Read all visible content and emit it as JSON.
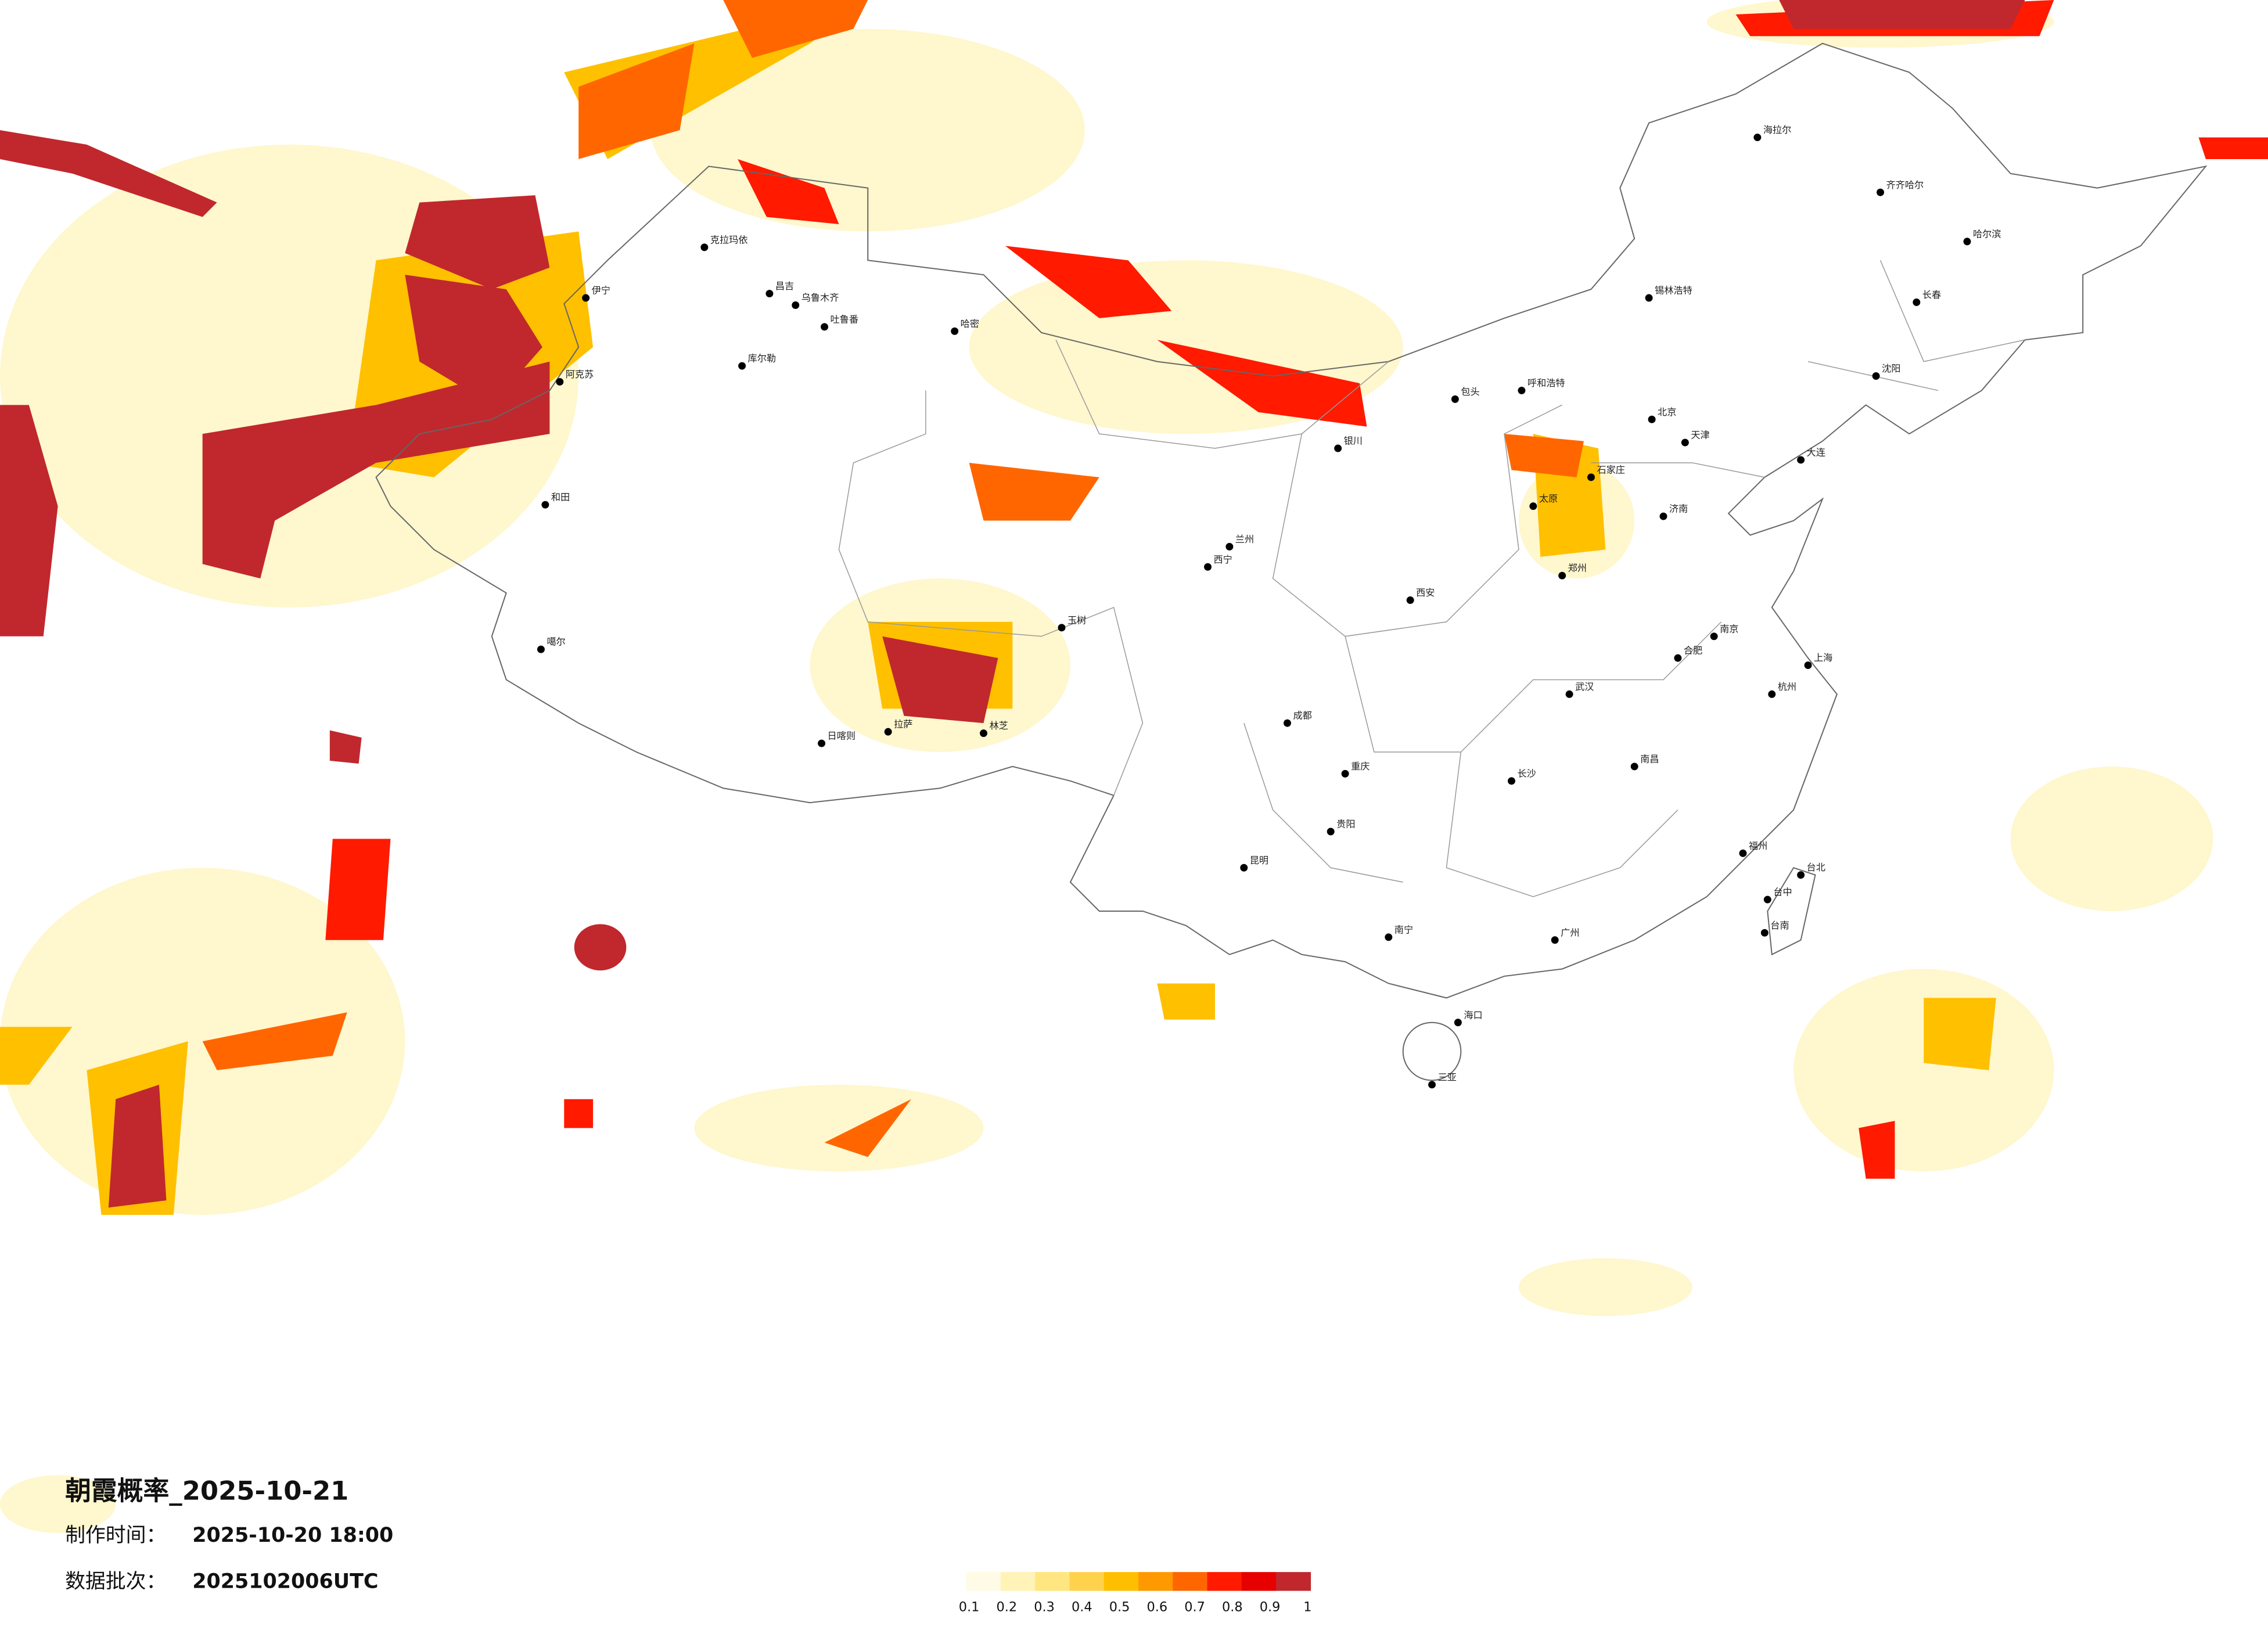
{
  "title": "朝霞概率_2025-10-21",
  "info": [
    {
      "label": "制作时间：",
      "value": "2025-10-20 18:00"
    },
    {
      "label": "数据批次：",
      "value": "2025102006UTC"
    }
  ],
  "legend": {
    "colors": [
      "#fffbe6",
      "#fff3b8",
      "#ffe680",
      "#ffd24d",
      "#ffbf00",
      "#ff9900",
      "#ff6600",
      "#ff1a00",
      "#e60000",
      "#c0282d"
    ],
    "ticks": [
      0.1,
      0.2,
      0.3,
      0.4,
      0.5,
      0.6,
      0.7,
      0.8,
      0.9,
      1
    ]
  },
  "cities": [
    "海拉尔",
    "齐齐哈尔",
    "哈尔滨",
    "长春",
    "沈阳",
    "大连",
    "锡林浩特",
    "呼和浩特",
    "包头",
    "银川",
    "兰州",
    "西宁",
    "太原",
    "石家庄",
    "北京",
    "天津",
    "济南",
    "郑州",
    "西安",
    "成都",
    "重庆",
    "贵阳",
    "昆明",
    "南宁",
    "海口",
    "三亚",
    "广州",
    "长沙",
    "武汉",
    "南昌",
    "合肥",
    "南京",
    "上海",
    "杭州",
    "福州",
    "台北",
    "台中",
    "台南",
    "克拉玛依",
    "伊宁",
    "昌吉",
    "乌鲁木齐",
    "吐鲁番",
    "哈密",
    "库尔勒",
    "阿克苏",
    "和田",
    "噶尔",
    "日喀则",
    "拉萨",
    "林芝",
    "玉树"
  ]
}
